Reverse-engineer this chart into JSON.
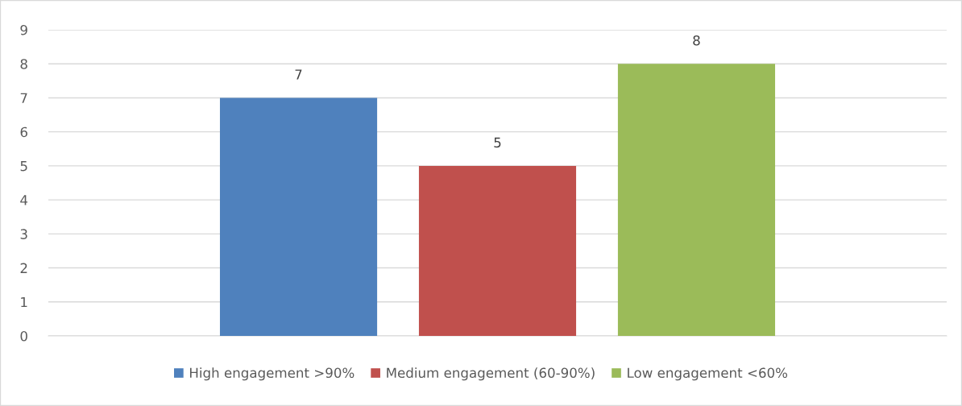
{
  "chart_data": {
    "type": "bar",
    "categories": [
      null
    ],
    "series": [
      {
        "name": "High engagement >90%",
        "color": "#4f81bd",
        "values": [
          7
        ]
      },
      {
        "name": "Medium engagement (60-90%)",
        "color": "#c0504d",
        "values": [
          5
        ]
      },
      {
        "name": "Low engagement <60%",
        "color": "#9bbb59",
        "values": [
          8
        ]
      }
    ],
    "ylim": [
      0,
      9
    ],
    "yticks": [
      0,
      1,
      2,
      3,
      4,
      5,
      6,
      7,
      8,
      9
    ],
    "grid": "y",
    "legend": "bottom",
    "data_labels": true
  }
}
